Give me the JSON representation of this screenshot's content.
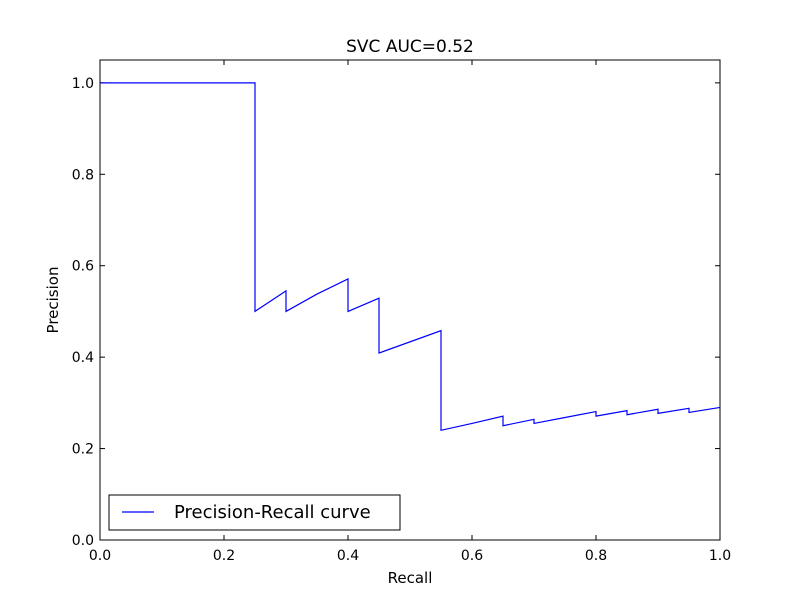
{
  "chart_data": {
    "type": "line",
    "title": "SVC AUC=0.52",
    "xlabel": "Recall",
    "ylabel": "Precision",
    "xlim": [
      0.0,
      1.0
    ],
    "ylim": [
      0.0,
      1.05
    ],
    "xticks": [
      "0.0",
      "0.2",
      "0.4",
      "0.6",
      "0.8",
      "1.0"
    ],
    "yticks": [
      "0.0",
      "0.2",
      "0.4",
      "0.6",
      "0.8",
      "1.0"
    ],
    "grid": false,
    "legend": {
      "position": "lower-left"
    },
    "series": [
      {
        "name": "Precision-Recall curve",
        "color": "#0000ff",
        "x": [
          0.0,
          0.25,
          0.25,
          0.3,
          0.3,
          0.35,
          0.4,
          0.4,
          0.45,
          0.45,
          0.55,
          0.55,
          0.6,
          0.65,
          0.65,
          0.7,
          0.7,
          0.75,
          0.8,
          0.8,
          0.85,
          0.85,
          0.9,
          0.9,
          0.95,
          0.95,
          1.0
        ],
        "y": [
          1.0,
          1.0,
          0.5,
          0.545,
          0.5,
          0.538,
          0.571,
          0.5,
          0.529,
          0.409,
          0.458,
          0.24,
          0.255,
          0.271,
          0.25,
          0.264,
          0.255,
          0.268,
          0.281,
          0.271,
          0.283,
          0.274,
          0.286,
          0.277,
          0.288,
          0.279,
          0.29
        ]
      }
    ]
  }
}
